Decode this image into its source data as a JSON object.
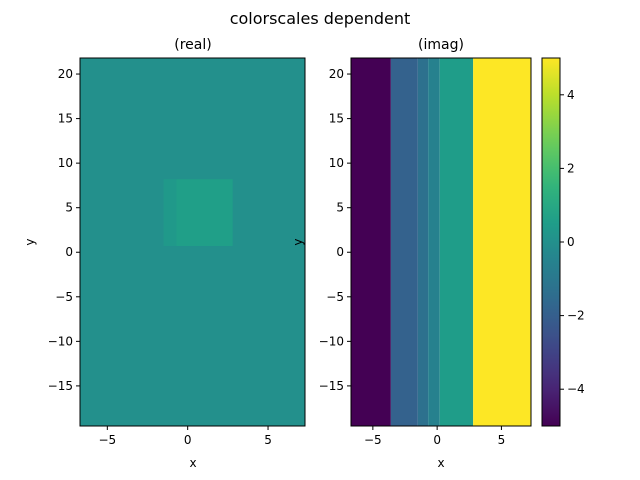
{
  "figure": {
    "suptitle": "colorscales dependent"
  },
  "chart_data": [
    {
      "type": "heatmap",
      "title": "(real)",
      "xlabel": "x",
      "ylabel": "y",
      "xlim": [
        -6.7,
        7.3
      ],
      "ylim": [
        -19.5,
        21.8
      ],
      "xticks": [
        -5,
        0,
        5
      ],
      "yticks": [
        -15,
        -10,
        -5,
        0,
        5,
        10,
        15,
        20
      ],
      "background_value": 0,
      "cells": [
        {
          "x": [
            -1.5,
            -0.7
          ],
          "y": [
            0.7,
            8.2
          ],
          "value": 0.35
        },
        {
          "x": [
            -0.7,
            2.8
          ],
          "y": [
            0.7,
            8.2
          ],
          "value": 0.6
        }
      ]
    },
    {
      "type": "heatmap",
      "title": "(imag)",
      "xlabel": "x",
      "ylabel": "y",
      "xlim": [
        -6.7,
        7.3
      ],
      "ylim": [
        -19.5,
        21.8
      ],
      "xticks": [
        -5,
        0,
        5
      ],
      "yticks": [
        -15,
        -10,
        -5,
        0,
        5,
        10,
        15,
        20
      ],
      "columns": [
        {
          "x": [
            -6.7,
            -3.6
          ],
          "value": -5
        },
        {
          "x": [
            -3.6,
            -1.5
          ],
          "value": -1.9
        },
        {
          "x": [
            -1.5,
            -0.7
          ],
          "value": -1.3
        },
        {
          "x": [
            -0.7,
            0.2
          ],
          "value": -0.6
        },
        {
          "x": [
            0.2,
            2.8
          ],
          "value": 0.5
        },
        {
          "x": [
            2.8,
            7.3
          ],
          "value": 5
        }
      ]
    }
  ],
  "colorbar": {
    "colormap": "viridis",
    "range": [
      -5,
      5
    ],
    "ticks": [
      4,
      2,
      0,
      -2,
      -4
    ],
    "tick_labels": [
      "4",
      "2",
      "0",
      "−2",
      "−4"
    ]
  }
}
